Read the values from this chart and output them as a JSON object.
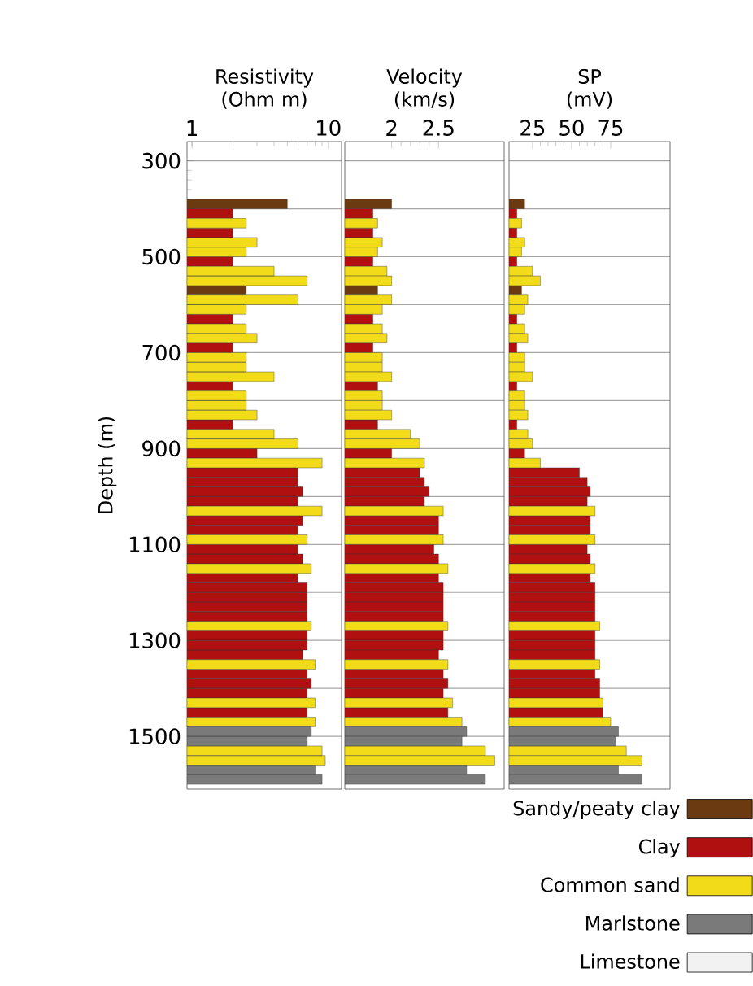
{
  "chart_data": [
    {
      "type": "bar",
      "orientation": "horizontal",
      "xlabel": "Resistivity (Ohm m)",
      "ylabel": "Depth (m)",
      "log": "x",
      "xlim": [
        0.92,
        12.5
      ],
      "xticks": [
        1,
        10
      ],
      "ylim": [
        1610,
        260
      ],
      "yticks": [
        300,
        {
          "value": 400,
          "label": null
        },
        500,
        {
          "value": 600,
          "label": null
        },
        700,
        {
          "value": 800,
          "label": null
        },
        900,
        {
          "value": 1000,
          "label": null
        },
        1100,
        {
          "value": 1200,
          "label": null
        },
        1300,
        {
          "value": 1400,
          "label": null
        },
        1500
      ],
      "grid": "y",
      "x": [
        390,
        410,
        430,
        450,
        470,
        490,
        510,
        530,
        550,
        570,
        590,
        610,
        630,
        650,
        670,
        690,
        710,
        730,
        750,
        770,
        790,
        810,
        830,
        850,
        870,
        890,
        910,
        930,
        950,
        970,
        990,
        1010,
        1030,
        1050,
        1070,
        1090,
        1110,
        1130,
        1150,
        1170,
        1190,
        1210,
        1230,
        1250,
        1270,
        1290,
        1310,
        1330,
        1350,
        1370,
        1390,
        1410,
        1430,
        1450,
        1470,
        1490,
        1510,
        1530,
        1550,
        1570,
        1590
      ],
      "series": [
        {
          "color": "#6b3a10",
          "values": [
            5,
            null,
            null,
            null,
            null,
            null,
            null,
            null,
            null,
            2.5,
            null,
            null,
            null,
            null,
            null,
            null,
            null,
            null,
            null,
            null,
            null,
            null,
            null,
            null,
            null,
            null,
            null,
            null,
            null,
            null,
            null,
            null,
            null,
            null,
            null,
            null,
            null,
            null,
            null,
            null,
            null,
            null,
            null,
            null,
            null,
            null,
            null,
            null,
            null,
            null,
            null,
            null,
            null,
            null,
            null,
            null,
            null,
            null,
            null,
            null,
            null
          ]
        },
        {
          "color": "#b01010",
          "values": [
            null,
            2,
            null,
            2,
            null,
            null,
            2,
            null,
            null,
            null,
            null,
            null,
            2,
            null,
            null,
            2,
            null,
            null,
            null,
            2,
            null,
            null,
            null,
            2,
            null,
            null,
            3,
            null,
            6,
            6,
            6.5,
            6,
            null,
            6.5,
            6,
            null,
            6,
            6.5,
            null,
            6,
            7,
            7,
            7,
            7,
            null,
            7,
            7,
            6.5,
            null,
            7,
            7.5,
            7,
            null,
            7,
            null,
            null,
            null,
            null,
            null,
            null,
            null
          ]
        },
        {
          "color": "#f2dc1a",
          "values": [
            null,
            null,
            2.5,
            null,
            3,
            2.5,
            null,
            4,
            7,
            null,
            6,
            2.5,
            null,
            2.5,
            3,
            null,
            2.5,
            2.5,
            4,
            null,
            2.5,
            2.5,
            3,
            null,
            4,
            6,
            null,
            9,
            null,
            null,
            null,
            null,
            9,
            null,
            null,
            7,
            null,
            null,
            7.5,
            null,
            null,
            null,
            null,
            null,
            7.5,
            null,
            null,
            null,
            8,
            null,
            null,
            null,
            8,
            null,
            8,
            null,
            null,
            9,
            9.5,
            null,
            null
          ]
        },
        {
          "color": "#7a7a7a",
          "values": [
            null,
            null,
            null,
            null,
            null,
            null,
            null,
            null,
            null,
            null,
            null,
            null,
            null,
            null,
            null,
            null,
            null,
            null,
            null,
            null,
            null,
            null,
            null,
            null,
            null,
            null,
            null,
            null,
            null,
            null,
            null,
            null,
            null,
            null,
            null,
            null,
            null,
            null,
            null,
            null,
            null,
            null,
            null,
            null,
            null,
            null,
            null,
            null,
            null,
            null,
            null,
            null,
            null,
            null,
            null,
            7.5,
            7,
            null,
            null,
            8,
            9
          ]
        }
      ]
    },
    {
      "type": "bar",
      "orientation": "horizontal",
      "xlabel": "Velocity (km/s)",
      "xlim": [
        1.5,
        3.2
      ],
      "xticks": [
        2,
        2.5
      ],
      "ylim": [
        1610,
        260
      ],
      "tick_labels": "x",
      "yticks": [
        300,
        {
          "value": 400,
          "label": null
        },
        500,
        {
          "value": 600,
          "label": null
        },
        700,
        {
          "value": 800,
          "label": null
        },
        900,
        {
          "value": 1000,
          "label": null
        },
        1100,
        {
          "value": 1200,
          "label": null
        },
        1300,
        {
          "value": 1400,
          "label": null
        },
        1500
      ],
      "grid": "y",
      "x": [
        390,
        410,
        430,
        450,
        470,
        490,
        510,
        530,
        550,
        570,
        590,
        610,
        630,
        650,
        670,
        690,
        710,
        730,
        750,
        770,
        790,
        810,
        830,
        850,
        870,
        890,
        910,
        930,
        950,
        970,
        990,
        1010,
        1030,
        1050,
        1070,
        1090,
        1110,
        1130,
        1150,
        1170,
        1190,
        1210,
        1230,
        1250,
        1270,
        1290,
        1310,
        1330,
        1350,
        1370,
        1390,
        1410,
        1430,
        1450,
        1470,
        1490,
        1510,
        1530,
        1550,
        1570,
        1590
      ],
      "series": [
        {
          "color": "#6b3a10",
          "values": [
            2.0,
            null,
            null,
            null,
            null,
            null,
            null,
            null,
            null,
            1.85,
            null,
            null,
            null,
            null,
            null,
            null,
            null,
            null,
            null,
            null,
            null,
            null,
            null,
            null,
            null,
            null,
            null,
            null,
            null,
            null,
            null,
            null,
            null,
            null,
            null,
            null,
            null,
            null,
            null,
            null,
            null,
            null,
            null,
            null,
            null,
            null,
            null,
            null,
            null,
            null,
            null,
            null,
            null,
            null,
            null,
            null,
            null,
            null,
            null,
            null,
            null
          ]
        },
        {
          "color": "#b01010",
          "values": [
            null,
            1.8,
            null,
            1.8,
            null,
            null,
            1.8,
            null,
            null,
            null,
            null,
            null,
            1.8,
            null,
            null,
            1.8,
            null,
            null,
            null,
            1.85,
            null,
            null,
            null,
            1.85,
            null,
            null,
            2.0,
            null,
            2.3,
            2.35,
            2.4,
            2.35,
            null,
            2.5,
            2.5,
            null,
            2.45,
            2.5,
            null,
            2.5,
            2.55,
            2.55,
            2.55,
            2.55,
            null,
            2.55,
            2.55,
            2.5,
            null,
            2.55,
            2.6,
            2.55,
            null,
            2.6,
            null,
            null,
            null,
            null,
            null,
            null,
            null
          ]
        },
        {
          "color": "#f2dc1a",
          "values": [
            null,
            null,
            1.85,
            null,
            1.9,
            1.85,
            null,
            1.95,
            2.0,
            null,
            2.0,
            1.9,
            null,
            1.9,
            1.95,
            null,
            1.9,
            1.9,
            2.0,
            null,
            1.9,
            1.9,
            2.0,
            null,
            2.2,
            2.3,
            null,
            2.35,
            null,
            null,
            null,
            null,
            2.55,
            null,
            null,
            2.55,
            null,
            null,
            2.6,
            null,
            null,
            null,
            null,
            null,
            2.6,
            null,
            null,
            null,
            2.6,
            null,
            null,
            null,
            2.65,
            null,
            2.75,
            null,
            null,
            3.0,
            3.1,
            null,
            null
          ]
        },
        {
          "color": "#7a7a7a",
          "values": [
            null,
            null,
            null,
            null,
            null,
            null,
            null,
            null,
            null,
            null,
            null,
            null,
            null,
            null,
            null,
            null,
            null,
            null,
            null,
            null,
            null,
            null,
            null,
            null,
            null,
            null,
            null,
            null,
            null,
            null,
            null,
            null,
            null,
            null,
            null,
            null,
            null,
            null,
            null,
            null,
            null,
            null,
            null,
            null,
            null,
            null,
            null,
            null,
            null,
            null,
            null,
            null,
            null,
            null,
            null,
            2.8,
            2.75,
            null,
            null,
            2.8,
            3.0
          ]
        }
      ]
    },
    {
      "type": "bar",
      "orientation": "horizontal",
      "xlabel": "SP (mV)",
      "xlim": [
        10,
        113
      ],
      "xticks": [
        25,
        50,
        75
      ],
      "ylim": [
        1610,
        260
      ],
      "tick_labels": "x",
      "legend": "bottom",
      "yticks": [
        300,
        {
          "value": 400,
          "label": null
        },
        500,
        {
          "value": 600,
          "label": null
        },
        700,
        {
          "value": 800,
          "label": null
        },
        900,
        {
          "value": 1000,
          "label": null
        },
        1100,
        {
          "value": 1200,
          "label": null
        },
        1300,
        {
          "value": 1400,
          "label": null
        },
        1500
      ],
      "grid": "y",
      "x": [
        390,
        410,
        430,
        450,
        470,
        490,
        510,
        530,
        550,
        570,
        590,
        610,
        630,
        650,
        670,
        690,
        710,
        730,
        750,
        770,
        790,
        810,
        830,
        850,
        870,
        890,
        910,
        930,
        950,
        970,
        990,
        1010,
        1030,
        1050,
        1070,
        1090,
        1110,
        1130,
        1150,
        1170,
        1190,
        1210,
        1230,
        1250,
        1270,
        1290,
        1310,
        1330,
        1350,
        1370,
        1390,
        1410,
        1430,
        1450,
        1470,
        1490,
        1510,
        1530,
        1550,
        1570,
        1590
      ],
      "series": [
        {
          "name": "Sandy/peaty clay",
          "color": "#6b3a10",
          "values": [
            20,
            null,
            null,
            null,
            null,
            null,
            null,
            null,
            null,
            18,
            null,
            null,
            null,
            null,
            null,
            null,
            null,
            null,
            null,
            null,
            null,
            null,
            null,
            null,
            null,
            null,
            null,
            null,
            null,
            null,
            null,
            null,
            null,
            null,
            null,
            null,
            null,
            null,
            null,
            null,
            null,
            null,
            null,
            null,
            null,
            null,
            null,
            null,
            null,
            null,
            null,
            null,
            null,
            null,
            null,
            null,
            null,
            null,
            null,
            null,
            null
          ]
        },
        {
          "name": "Clay",
          "color": "#b01010",
          "values": [
            null,
            15,
            null,
            15,
            null,
            null,
            15,
            null,
            null,
            null,
            null,
            null,
            15,
            null,
            null,
            15,
            null,
            null,
            null,
            15,
            null,
            null,
            null,
            15,
            null,
            null,
            20,
            null,
            55,
            60,
            62,
            60,
            null,
            62,
            62,
            null,
            60,
            62,
            null,
            62,
            65,
            65,
            65,
            65,
            null,
            65,
            65,
            65,
            null,
            65,
            68,
            68,
            null,
            70,
            null,
            null,
            null,
            null,
            null,
            null,
            null
          ]
        },
        {
          "name": "Common sand",
          "color": "#f2dc1a",
          "values": [
            null,
            null,
            18,
            null,
            20,
            18,
            null,
            25,
            30,
            null,
            22,
            20,
            null,
            20,
            22,
            null,
            20,
            20,
            25,
            null,
            20,
            20,
            22,
            null,
            22,
            25,
            null,
            30,
            null,
            null,
            null,
            null,
            65,
            null,
            null,
            65,
            null,
            null,
            65,
            null,
            null,
            null,
            null,
            null,
            68,
            null,
            null,
            null,
            68,
            null,
            null,
            null,
            70,
            null,
            75,
            null,
            null,
            85,
            95,
            null,
            null
          ]
        },
        {
          "name": "Marlstone",
          "color": "#7a7a7a",
          "values": [
            null,
            null,
            null,
            null,
            null,
            null,
            null,
            null,
            null,
            null,
            null,
            null,
            null,
            null,
            null,
            null,
            null,
            null,
            null,
            null,
            null,
            null,
            null,
            null,
            null,
            null,
            null,
            null,
            null,
            null,
            null,
            null,
            null,
            null,
            null,
            null,
            null,
            null,
            null,
            null,
            null,
            null,
            null,
            null,
            null,
            null,
            null,
            null,
            null,
            null,
            null,
            null,
            null,
            null,
            null,
            80,
            78,
            null,
            null,
            80,
            95
          ]
        },
        {
          "name": "Limestone",
          "color": "#f2f2f2",
          "values": [
            null,
            null,
            null,
            null,
            null,
            null,
            null,
            null,
            null,
            null,
            null,
            null,
            null,
            null,
            null,
            null,
            null,
            null,
            null,
            null,
            null,
            null,
            null,
            null,
            null,
            null,
            null,
            null,
            null,
            null,
            null,
            null,
            null,
            null,
            null,
            null,
            null,
            null,
            null,
            null,
            null,
            null,
            null,
            null,
            null,
            null,
            null,
            null,
            null,
            null,
            null,
            null,
            null,
            null,
            null,
            null,
            null,
            null,
            null,
            null,
            null
          ]
        }
      ]
    }
  ]
}
